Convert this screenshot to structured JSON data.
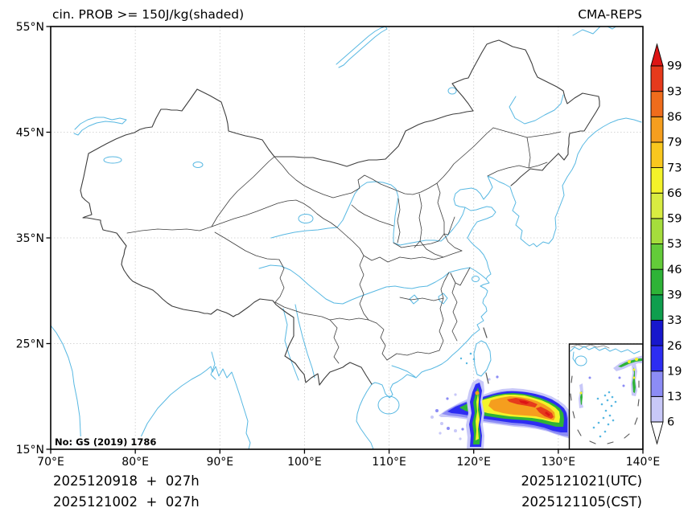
{
  "title": "cin. PROB >= 150J/kg(shaded)",
  "model_label": "CMA-REPS",
  "watermark": "No: GS (2019) 1786",
  "footer": {
    "init_line": "2025120918  +  027h",
    "init_line2": "2025121002  +  027h",
    "valid_utc": "2025121021(UTC)",
    "valid_cst": "2025121105(CST)"
  },
  "axes": {
    "x_tick_labels": [
      "70°E",
      "80°E",
      "90°E",
      "100°E",
      "110°E",
      "120°E",
      "130°E",
      "140°E"
    ],
    "y_tick_labels": [
      "55°N",
      "45°N",
      "35°N",
      "25°N",
      "15°N"
    ],
    "lon_range": [
      70,
      140
    ],
    "lat_range": [
      15,
      55
    ]
  },
  "colorbar": {
    "levels": [
      6,
      13,
      19,
      26,
      33,
      39,
      46,
      53,
      59,
      66,
      73,
      79,
      86,
      93,
      99
    ],
    "colors": [
      "#c8c8f8",
      "#8c8cf5",
      "#2d2df2",
      "#1717cc",
      "#0f9e4e",
      "#2eb337",
      "#63cb39",
      "#a5dd3c",
      "#d8ec41",
      "#f4f32a",
      "#f9c71e",
      "#f59e1e",
      "#ef6c1c",
      "#e63a1c"
    ],
    "over_color": "#dd1515",
    "under_color": "#ffffff"
  },
  "map_colors": {
    "coast": "#58b8e2",
    "border": "#3d3d3d",
    "grid": "#c9c9c9",
    "dash_line": "#555555",
    "inset_gray": "#888888"
  },
  "chart_data": {
    "type": "heatmap",
    "title": "cin. PROB >= 150J/kg(shaded)",
    "model": "CMA-REPS",
    "variable": "Probability of CIN >= 150 J/kg",
    "units": "%",
    "xlim": [
      70,
      140
    ],
    "ylim": [
      15,
      55
    ],
    "grid": true,
    "legend_position": "right-colorbar",
    "levels": [
      6,
      13,
      19,
      26,
      33,
      39,
      46,
      53,
      59,
      66,
      73,
      79,
      86,
      93,
      99
    ],
    "init_times": [
      "2025120918",
      "2025121002"
    ],
    "forecast_hour": "027h",
    "valid_time_utc": "2025121021(UTC)",
    "valid_time_cst": "2025121105(CST)",
    "features": [
      {
        "name": "luzon-strait-band",
        "shape": "east-west shaded band",
        "lon_range": [
          116,
          140
        ],
        "lat_range": [
          17,
          20.5
        ],
        "max_value": 99
      },
      {
        "name": "luzon-island-streak",
        "shape": "north-south shaded streak",
        "lon_range": [
          120.2,
          121.4
        ],
        "lat_range": [
          15,
          21.5
        ],
        "max_value": 80
      },
      {
        "name": "south-china-sea-scatter",
        "shape": "scattered cells shown in inset",
        "lon_range": [
          105,
          121
        ],
        "lat_range": [
          4,
          22
        ],
        "max_value": 70
      }
    ]
  }
}
